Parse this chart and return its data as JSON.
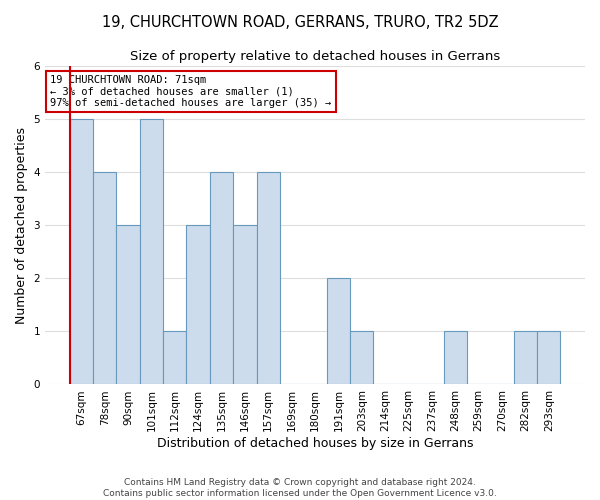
{
  "title_line1": "19, CHURCHTOWN ROAD, GERRANS, TRURO, TR2 5DZ",
  "title_line2": "Size of property relative to detached houses in Gerrans",
  "xlabel": "Distribution of detached houses by size in Gerrans",
  "ylabel": "Number of detached properties",
  "footnote": "Contains HM Land Registry data © Crown copyright and database right 2024.\nContains public sector information licensed under the Open Government Licence v3.0.",
  "categories": [
    "67sqm",
    "78sqm",
    "90sqm",
    "101sqm",
    "112sqm",
    "124sqm",
    "135sqm",
    "146sqm",
    "157sqm",
    "169sqm",
    "180sqm",
    "191sqm",
    "203sqm",
    "214sqm",
    "225sqm",
    "237sqm",
    "248sqm",
    "259sqm",
    "270sqm",
    "282sqm",
    "293sqm"
  ],
  "values": [
    5,
    4,
    3,
    5,
    1,
    3,
    4,
    3,
    4,
    0,
    0,
    2,
    1,
    0,
    0,
    0,
    1,
    0,
    0,
    1,
    1
  ],
  "bar_color": "#ccdcec",
  "bar_edge_color": "#6699bb",
  "highlight_line_color": "#cc0000",
  "annotation_text": "19 CHURCHTOWN ROAD: 71sqm\n← 3% of detached houses are smaller (1)\n97% of semi-detached houses are larger (35) →",
  "annotation_box_facecolor": "#ffffff",
  "annotation_box_edgecolor": "#cc0000",
  "ylim": [
    0,
    6
  ],
  "yticks": [
    0,
    1,
    2,
    3,
    4,
    5,
    6
  ],
  "background_color": "#ffffff",
  "grid_color": "#dddddd",
  "title1_fontsize": 10.5,
  "title2_fontsize": 9.5,
  "ylabel_fontsize": 9,
  "xlabel_fontsize": 9,
  "tick_fontsize": 7.5,
  "annotation_fontsize": 7.5,
  "footnote_fontsize": 6.5
}
